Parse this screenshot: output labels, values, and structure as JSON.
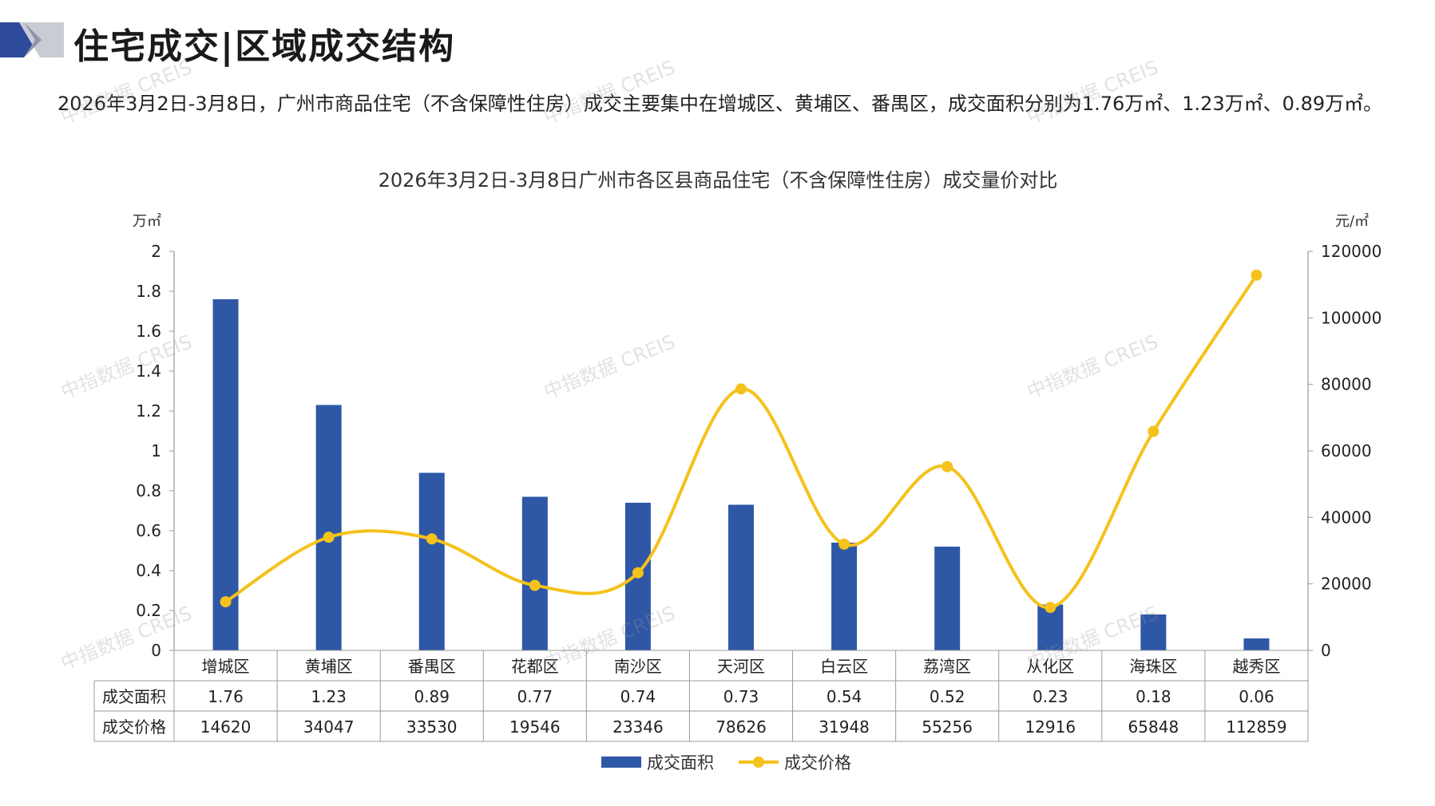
{
  "header": {
    "title": "住宅成交|区域成交结构"
  },
  "summary": "2026年3月2日-3月8日，广州市商品住宅（不含保障性住房）成交主要集中在增城区、黄埔区、番禺区，成交面积分别为1.76万㎡、1.23万㎡、0.89万㎡。",
  "watermark": "中指数据 CREIS",
  "colors": {
    "bar": "#2E57A6",
    "line": "#F5C21B",
    "accent": "#2E4A9A"
  },
  "chart_data": {
    "type": "bar",
    "title": "2026年3月2日-3月8日广州市各区县商品住宅（不含保障性住房）成交量价对比",
    "categories": [
      "增城区",
      "黄埔区",
      "番禺区",
      "花都区",
      "南沙区",
      "天河区",
      "白云区",
      "荔湾区",
      "从化区",
      "海珠区",
      "越秀区"
    ],
    "series": [
      {
        "name": "成交面积",
        "type": "bar",
        "axis": "left",
        "values": [
          1.76,
          1.23,
          0.89,
          0.77,
          0.74,
          0.73,
          0.54,
          0.52,
          0.23,
          0.18,
          0.06
        ]
      },
      {
        "name": "成交价格",
        "type": "line",
        "axis": "right",
        "values": [
          14620,
          34047,
          33530,
          19546,
          23346,
          78626,
          31948,
          55256,
          12916,
          65848,
          112859
        ]
      }
    ],
    "y_left": {
      "unit": "万㎡",
      "min": 0,
      "max": 2,
      "ticks": [
        "0",
        "0.2",
        "0.4",
        "0.6",
        "0.8",
        "1",
        "1.2",
        "1.4",
        "1.6",
        "1.8",
        "2"
      ]
    },
    "y_right": {
      "unit": "元/㎡",
      "min": 0,
      "max": 120000,
      "ticks": [
        "0",
        "20000",
        "40000",
        "60000",
        "80000",
        "100000",
        "120000"
      ]
    },
    "table_rows": [
      {
        "label": "成交面积",
        "values": [
          "1.76",
          "1.23",
          "0.89",
          "0.77",
          "0.74",
          "0.73",
          "0.54",
          "0.52",
          "0.23",
          "0.18",
          "0.06"
        ]
      },
      {
        "label": "成交价格",
        "values": [
          "14620",
          "34047",
          "33530",
          "19546",
          "23346",
          "78626",
          "31948",
          "55256",
          "12916",
          "65848",
          "112859"
        ]
      }
    ],
    "legend": {
      "position": "bottom",
      "items": [
        "成交面积",
        "成交价格"
      ]
    },
    "grid": false
  }
}
